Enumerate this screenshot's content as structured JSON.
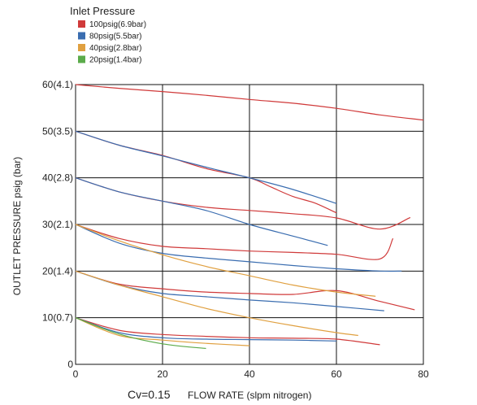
{
  "chart_data": {
    "type": "line",
    "legend_title": "Inlet Pressure",
    "legend_position": "top-left",
    "grid": true,
    "xlabel": "FLOW RATE (slpm nitrogen)",
    "ylabel": "OUTLET PRESSURE psig (bar)",
    "cv_label": "Cv=0.15",
    "xlim": [
      0,
      80
    ],
    "ylim": [
      0,
      60
    ],
    "x_ticks": [
      0,
      20,
      40,
      60,
      80
    ],
    "x_tick_labels": [
      "0",
      "20",
      "40",
      "60",
      "80"
    ],
    "y_ticks": [
      0,
      10,
      20,
      30,
      40,
      50,
      60
    ],
    "y_tick_labels": [
      "0",
      "10(0.7)",
      "20(1.4)",
      "30(2.1)",
      "40(2.8)",
      "50(3.5)",
      "60(4.1)"
    ],
    "series": [
      {
        "name": "100psig(6.9bar)",
        "color": "#d03a3a",
        "curves": [
          [
            [
              0,
              60
            ],
            [
              10,
              59.2
            ],
            [
              20,
              58.5
            ],
            [
              30,
              57.7
            ],
            [
              40,
              56.8
            ],
            [
              50,
              56
            ],
            [
              60,
              54.9
            ],
            [
              70,
              53.5
            ],
            [
              80,
              52.4
            ]
          ],
          [
            [
              0,
              50
            ],
            [
              10,
              47
            ],
            [
              20,
              44.8
            ],
            [
              30,
              42
            ],
            [
              40,
              40
            ],
            [
              45,
              38
            ],
            [
              50,
              36
            ],
            [
              55,
              34.6
            ],
            [
              60,
              32.5
            ]
          ],
          [
            [
              0,
              40
            ],
            [
              10,
              37
            ],
            [
              20,
              35
            ],
            [
              30,
              33.7
            ],
            [
              40,
              33
            ],
            [
              50,
              32.3
            ],
            [
              60,
              31.4
            ],
            [
              70,
              29
            ],
            [
              77,
              31.5
            ]
          ],
          [
            [
              0,
              30
            ],
            [
              10,
              27
            ],
            [
              20,
              25.3
            ],
            [
              30,
              24.8
            ],
            [
              40,
              24.3
            ],
            [
              50,
              24
            ],
            [
              60,
              23.6
            ],
            [
              70,
              22.6
            ],
            [
              73,
              27
            ]
          ],
          [
            [
              0,
              20
            ],
            [
              10,
              17.2
            ],
            [
              20,
              16.2
            ],
            [
              30,
              15.5
            ],
            [
              40,
              15.2
            ],
            [
              50,
              15
            ],
            [
              60,
              15.8
            ],
            [
              70,
              13.5
            ],
            [
              78,
              11.7
            ]
          ],
          [
            [
              0,
              10
            ],
            [
              10,
              7.3
            ],
            [
              20,
              6.4
            ],
            [
              30,
              6
            ],
            [
              40,
              5.7
            ],
            [
              50,
              5.6
            ],
            [
              60,
              5.4
            ],
            [
              70,
              4.2
            ]
          ]
        ]
      },
      {
        "name": "80psig(5.5bar)",
        "color": "#3a6db0",
        "curves": [
          [
            [
              0,
              50
            ],
            [
              10,
              47
            ],
            [
              20,
              44.7
            ],
            [
              30,
              42.3
            ],
            [
              40,
              40
            ],
            [
              50,
              37.5
            ],
            [
              60,
              34.5
            ]
          ],
          [
            [
              0,
              40
            ],
            [
              10,
              37
            ],
            [
              20,
              35
            ],
            [
              30,
              33
            ],
            [
              40,
              30
            ],
            [
              50,
              27.5
            ],
            [
              58,
              25.5
            ]
          ],
          [
            [
              0,
              30
            ],
            [
              10,
              26
            ],
            [
              20,
              23.8
            ],
            [
              30,
              22.8
            ],
            [
              40,
              22
            ],
            [
              50,
              21.2
            ],
            [
              60,
              20.5
            ],
            [
              70,
              20
            ],
            [
              75,
              20
            ]
          ],
          [
            [
              0,
              20
            ],
            [
              10,
              17
            ],
            [
              20,
              15.2
            ],
            [
              30,
              14.5
            ],
            [
              40,
              13.8
            ],
            [
              50,
              13.2
            ],
            [
              60,
              12.4
            ],
            [
              71,
              11.5
            ]
          ],
          [
            [
              0,
              10
            ],
            [
              10,
              6.8
            ],
            [
              20,
              5.7
            ],
            [
              30,
              5.4
            ],
            [
              40,
              5.3
            ],
            [
              50,
              5.2
            ],
            [
              60,
              5
            ]
          ]
        ]
      },
      {
        "name": "40psig(2.8bar)",
        "color": "#e0a040",
        "curves": [
          [
            [
              0,
              30
            ],
            [
              10,
              26.5
            ],
            [
              20,
              23.5
            ],
            [
              30,
              21
            ],
            [
              40,
              19
            ],
            [
              50,
              17
            ],
            [
              60,
              15.5
            ],
            [
              69,
              14.6
            ]
          ],
          [
            [
              0,
              20
            ],
            [
              10,
              17
            ],
            [
              20,
              14.5
            ],
            [
              30,
              12
            ],
            [
              40,
              10
            ],
            [
              50,
              8.3
            ],
            [
              60,
              6.8
            ],
            [
              65,
              6.2
            ]
          ],
          [
            [
              0,
              10
            ],
            [
              10,
              6.2
            ],
            [
              20,
              5.2
            ],
            [
              30,
              4.5
            ],
            [
              40,
              4
            ]
          ]
        ]
      },
      {
        "name": "20psig(1.4bar)",
        "color": "#5bab4a",
        "curves": [
          [
            [
              0,
              10
            ],
            [
              10,
              6.5
            ],
            [
              20,
              4.4
            ],
            [
              30,
              3.4
            ]
          ]
        ]
      }
    ]
  }
}
